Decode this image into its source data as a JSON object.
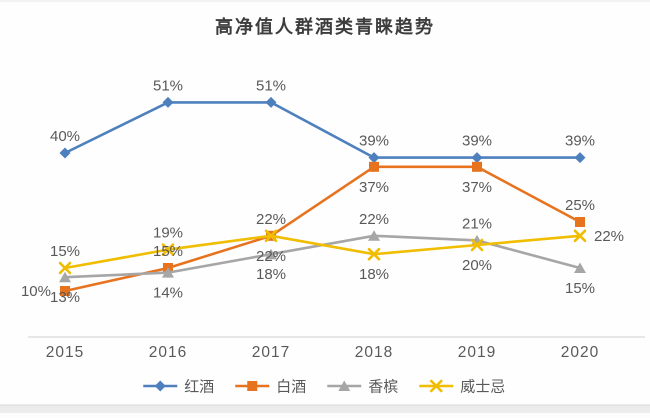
{
  "page": {
    "background": "#fefefe",
    "frame_edge_color": "#e9e9e9",
    "frame_line_color": "#d9d9d9"
  },
  "chart_data": {
    "type": "line",
    "title": "高净值人群酒类青睐趋势",
    "title_color": "#3d3d3d",
    "categories": [
      "2015",
      "2016",
      "2017",
      "2018",
      "2019",
      "2020"
    ],
    "series": [
      {
        "id": "red-wine",
        "name": "红酒",
        "color": "#4d80bd",
        "marker": "diamond",
        "values": [
          40,
          51,
          51,
          39,
          39,
          39
        ],
        "label_positions": [
          "above",
          "above",
          "above",
          "above",
          "above",
          "above"
        ]
      },
      {
        "id": "baijiu",
        "name": "白酒",
        "color": "#e8731f",
        "marker": "square",
        "values": [
          10,
          15,
          22,
          37,
          37,
          25
        ],
        "label_positions": [
          "left",
          "above",
          "above",
          "below",
          "below",
          "above"
        ]
      },
      {
        "id": "champagne",
        "name": "香槟",
        "color": "#a6a6a6",
        "marker": "triangle",
        "values": [
          13,
          14,
          18,
          22,
          21,
          15
        ],
        "label_positions": [
          "below",
          "below",
          "below",
          "above",
          "above",
          "below"
        ]
      },
      {
        "id": "whisky",
        "name": "威士忌",
        "color": "#f0bd00",
        "marker": "x",
        "values": [
          15,
          19,
          22,
          18,
          20,
          22
        ],
        "label_positions": [
          "above",
          "above",
          "below",
          "below",
          "below",
          "right"
        ]
      }
    ],
    "label_suffix": "%",
    "ylim": [
      0,
      60
    ],
    "grid": false,
    "legend_position": "bottom",
    "data_label_color": "#595959",
    "axis_label_color": "#595959",
    "axis_line_color": "#d9d9d9"
  }
}
